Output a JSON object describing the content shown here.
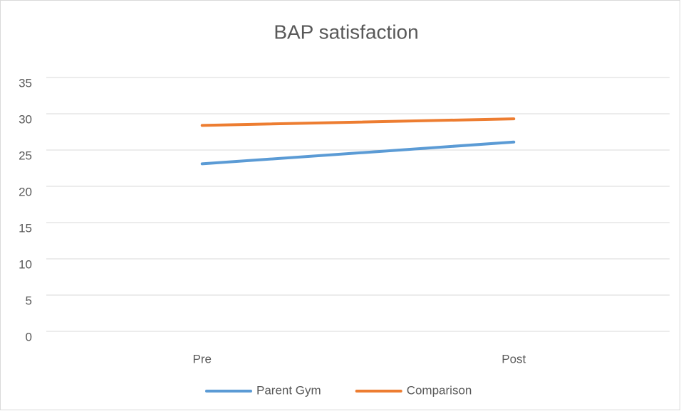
{
  "chart_data": {
    "type": "line",
    "title": "BAP satisfaction",
    "categories": [
      "Pre",
      "Post"
    ],
    "series": [
      {
        "name": "Parent Gym",
        "color": "#5b9bd5",
        "values": [
          23.1,
          26.1
        ]
      },
      {
        "name": "Comparison",
        "color": "#ed7d31",
        "values": [
          28.4,
          29.3
        ]
      }
    ],
    "ylim": [
      0,
      35
    ],
    "yticks": [
      0,
      5,
      10,
      15,
      20,
      25,
      30,
      35
    ],
    "grid": true,
    "legend": "bottom"
  }
}
